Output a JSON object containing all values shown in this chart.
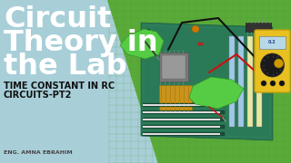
{
  "bg_color": "#a8cfd8",
  "mat_color": "#5aaa3a",
  "mat_grid_color": "#4a9a2a",
  "title_line1": "Circuit",
  "title_line2": "Theory in",
  "title_line3": "the Lab",
  "subtitle1": "TIME CONSTANT IN RC",
  "subtitle2": "CIRCUITS-PT2",
  "author": "ENG. AMNA EBRAHIM",
  "title_color": "#ffffff",
  "subtitle_color": "#111111",
  "author_color": "#444444",
  "pcb_color": "#2a7a58",
  "pcb_dark": "#1e5e42",
  "pcb_light": "#3a9a6e",
  "multimeter_yellow": "#e8c020",
  "multimeter_dark": "#c8a010",
  "glove_color": "#55cc44",
  "glove_edge": "#339922",
  "wire_black": "#111111",
  "wire_red": "#cc1111",
  "chip_color": "#888888",
  "gold_color": "#c8941a",
  "ram_color": "#b8d8f0",
  "slot_dark": "#1a4e36"
}
